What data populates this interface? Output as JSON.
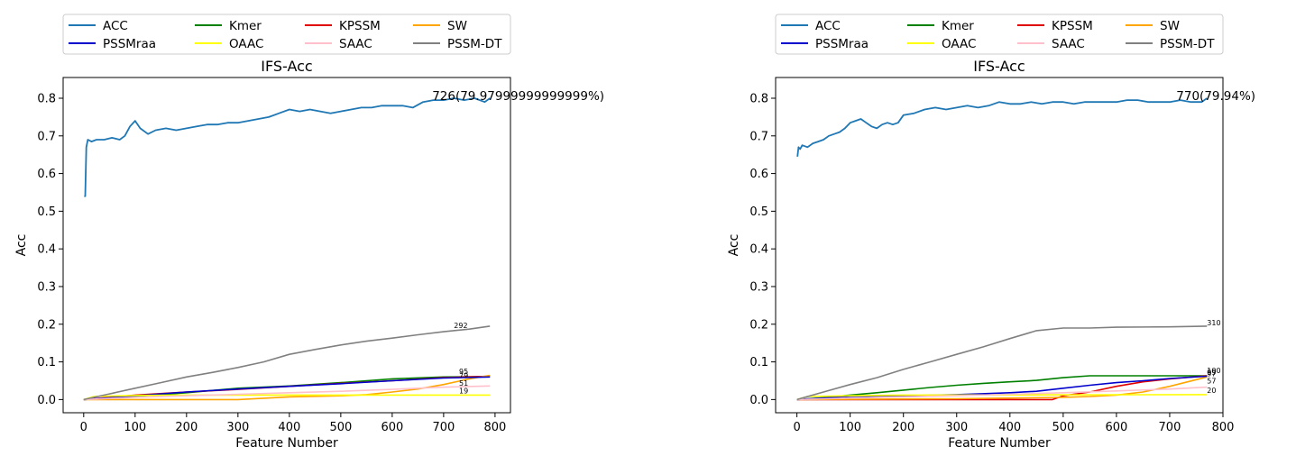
{
  "colors": {
    "ACC": "#1f77b4",
    "PSSMraa": "#0000cd",
    "Kmer": "#008000",
    "OAAC": "#ffff00",
    "KPSSM": "#e00000",
    "SAAC": "#ffc0cb",
    "SW": "#ffa500",
    "PSSM-DT": "#808080"
  },
  "chart_data": [
    {
      "type": "line",
      "title": "IFS-Acc",
      "xlabel": "Feature Number",
      "ylabel": "Acc",
      "xlim": [
        -40,
        830
      ],
      "ylim": [
        -0.035,
        0.855
      ],
      "xticks": [
        "0",
        "100",
        "200",
        "300",
        "400",
        "500",
        "600",
        "700",
        "800"
      ],
      "yticks": [
        "0.0",
        "0.1",
        "0.2",
        "0.3",
        "0.4",
        "0.5",
        "0.6",
        "0.7",
        "0.8"
      ],
      "grid": false,
      "legend_position": "top",
      "legend": [
        "ACC",
        "Kmer",
        "KPSSM",
        "SW",
        "PSSMraa",
        "OAAC",
        "SAAC",
        "PSSM-DT"
      ],
      "best_annotation": "726(79.97999999999999%)",
      "series": [
        {
          "name": "ACC",
          "x": [
            1,
            3,
            5,
            8,
            15,
            25,
            40,
            55,
            70,
            80,
            90,
            100,
            110,
            125,
            140,
            160,
            180,
            200,
            220,
            240,
            260,
            280,
            300,
            320,
            340,
            360,
            380,
            400,
            420,
            440,
            460,
            480,
            500,
            520,
            540,
            560,
            580,
            600,
            620,
            640,
            660,
            680,
            700,
            720,
            740,
            760,
            780,
            790
          ],
          "y": [
            0.54,
            0.54,
            0.67,
            0.69,
            0.685,
            0.69,
            0.69,
            0.695,
            0.69,
            0.7,
            0.725,
            0.74,
            0.72,
            0.705,
            0.715,
            0.72,
            0.715,
            0.72,
            0.725,
            0.73,
            0.73,
            0.735,
            0.735,
            0.74,
            0.745,
            0.75,
            0.76,
            0.77,
            0.765,
            0.77,
            0.765,
            0.76,
            0.765,
            0.77,
            0.775,
            0.775,
            0.78,
            0.78,
            0.78,
            0.775,
            0.79,
            0.795,
            0.795,
            0.8,
            0.795,
            0.8,
            0.79,
            0.8
          ]
        },
        {
          "name": "Kmer",
          "x": [
            0,
            100,
            200,
            300,
            400,
            500,
            600,
            700,
            790
          ],
          "y": [
            0,
            0.008,
            0.018,
            0.03,
            0.036,
            0.045,
            0.055,
            0.06,
            0.061
          ]
        },
        {
          "name": "KPSSM",
          "x": [
            0,
            100,
            200,
            300,
            400,
            500,
            600,
            700,
            790
          ],
          "y": [
            0,
            0.012,
            0.02,
            0.027,
            0.035,
            0.043,
            0.05,
            0.058,
            0.062
          ]
        },
        {
          "name": "SW",
          "x": [
            0,
            300,
            400,
            500,
            550,
            600,
            650,
            700,
            750,
            790
          ],
          "y": [
            0,
            0.0,
            0.007,
            0.01,
            0.013,
            0.02,
            0.028,
            0.04,
            0.055,
            0.064
          ]
        },
        {
          "name": "PSSMraa",
          "x": [
            0,
            100,
            200,
            300,
            400,
            500,
            600,
            700,
            790
          ],
          "y": [
            0,
            0.01,
            0.02,
            0.028,
            0.035,
            0.042,
            0.05,
            0.057,
            0.06
          ]
        },
        {
          "name": "OAAC",
          "x": [
            0,
            20,
            100,
            200,
            790
          ],
          "y": [
            0,
            0.008,
            0.011,
            0.012,
            0.012
          ]
        },
        {
          "name": "SAAC",
          "x": [
            0,
            100,
            200,
            300,
            400,
            500,
            600,
            700,
            790
          ],
          "y": [
            0,
            0.006,
            0.01,
            0.014,
            0.018,
            0.022,
            0.027,
            0.033,
            0.036
          ]
        },
        {
          "name": "PSSM-DT",
          "x": [
            0,
            50,
            100,
            150,
            200,
            250,
            300,
            350,
            400,
            450,
            500,
            550,
            600,
            650,
            700,
            750,
            790
          ],
          "y": [
            0,
            0.015,
            0.03,
            0.045,
            0.06,
            0.072,
            0.085,
            0.1,
            0.12,
            0.133,
            0.145,
            0.155,
            0.163,
            0.172,
            0.18,
            0.187,
            0.195
          ]
        }
      ],
      "end_labels": [
        {
          "text": "292",
          "x": 720,
          "y": 0.19
        },
        {
          "text": "95",
          "x": 730,
          "y": 0.068
        },
        {
          "text": "79",
          "x": 730,
          "y": 0.057
        },
        {
          "text": "51",
          "x": 730,
          "y": 0.037
        },
        {
          "text": "19",
          "x": 730,
          "y": 0.017
        }
      ]
    },
    {
      "type": "line",
      "title": "IFS-Acc",
      "xlabel": "Feature Number",
      "ylabel": "Acc",
      "xlim": [
        -40,
        800
      ],
      "ylim": [
        -0.035,
        0.855
      ],
      "xticks": [
        "0",
        "100",
        "200",
        "300",
        "400",
        "500",
        "600",
        "700",
        "800"
      ],
      "yticks": [
        "0.0",
        "0.1",
        "0.2",
        "0.3",
        "0.4",
        "0.5",
        "0.6",
        "0.7",
        "0.8"
      ],
      "grid": false,
      "legend_position": "top",
      "legend": [
        "ACC",
        "Kmer",
        "KPSSM",
        "SW",
        "PSSMraa",
        "OAAC",
        "SAAC",
        "PSSM-DT"
      ],
      "best_annotation": "770(79.94%)",
      "series": [
        {
          "name": "ACC",
          "x": [
            1,
            3,
            6,
            10,
            20,
            30,
            40,
            50,
            60,
            70,
            80,
            90,
            100,
            110,
            120,
            130,
            140,
            150,
            160,
            170,
            180,
            190,
            200,
            220,
            240,
            260,
            280,
            300,
            320,
            340,
            360,
            380,
            400,
            420,
            440,
            460,
            480,
            500,
            520,
            540,
            560,
            580,
            600,
            620,
            640,
            660,
            680,
            700,
            720,
            740,
            760,
            770
          ],
          "y": [
            0.645,
            0.67,
            0.665,
            0.675,
            0.67,
            0.68,
            0.685,
            0.69,
            0.7,
            0.705,
            0.71,
            0.72,
            0.735,
            0.74,
            0.745,
            0.735,
            0.725,
            0.72,
            0.73,
            0.735,
            0.73,
            0.735,
            0.755,
            0.76,
            0.77,
            0.775,
            0.77,
            0.775,
            0.78,
            0.775,
            0.78,
            0.79,
            0.785,
            0.785,
            0.79,
            0.785,
            0.79,
            0.79,
            0.785,
            0.79,
            0.79,
            0.79,
            0.79,
            0.795,
            0.795,
            0.79,
            0.79,
            0.79,
            0.795,
            0.79,
            0.79,
            0.8
          ]
        },
        {
          "name": "Kmer",
          "x": [
            0,
            50,
            100,
            150,
            200,
            250,
            300,
            350,
            400,
            450,
            500,
            550,
            600,
            700,
            770
          ],
          "y": [
            0,
            0.005,
            0.012,
            0.018,
            0.025,
            0.032,
            0.038,
            0.043,
            0.047,
            0.051,
            0.058,
            0.063,
            0.063,
            0.063,
            0.063
          ]
        },
        {
          "name": "KPSSM",
          "x": [
            0,
            100,
            200,
            300,
            400,
            480,
            500,
            550,
            600,
            650,
            700,
            770
          ],
          "y": [
            0,
            0,
            0,
            0,
            0,
            0.0,
            0.01,
            0.02,
            0.035,
            0.047,
            0.055,
            0.063
          ]
        },
        {
          "name": "SW",
          "x": [
            0,
            300,
            400,
            500,
            550,
            600,
            650,
            700,
            770
          ],
          "y": [
            0,
            0.002,
            0.004,
            0.006,
            0.008,
            0.012,
            0.02,
            0.035,
            0.06
          ]
        },
        {
          "name": "PSSMraa",
          "x": [
            0,
            100,
            200,
            300,
            400,
            450,
            500,
            550,
            600,
            650,
            700,
            770
          ],
          "y": [
            0,
            0.008,
            0.01,
            0.013,
            0.018,
            0.022,
            0.03,
            0.038,
            0.045,
            0.05,
            0.056,
            0.062
          ]
        },
        {
          "name": "OAAC",
          "x": [
            0,
            20,
            100,
            200,
            770
          ],
          "y": [
            0,
            0.008,
            0.01,
            0.012,
            0.013
          ]
        },
        {
          "name": "SAAC",
          "x": [
            0,
            100,
            200,
            300,
            400,
            500,
            600,
            700,
            770
          ],
          "y": [
            0,
            0.004,
            0.007,
            0.01,
            0.014,
            0.018,
            0.023,
            0.028,
            0.033
          ]
        },
        {
          "name": "PSSM-DT",
          "x": [
            0,
            50,
            100,
            150,
            200,
            250,
            300,
            350,
            400,
            450,
            500,
            550,
            600,
            700,
            770
          ],
          "y": [
            0,
            0.02,
            0.04,
            0.058,
            0.08,
            0.1,
            0.12,
            0.14,
            0.162,
            0.183,
            0.19,
            0.19,
            0.192,
            0.193,
            0.195
          ]
        }
      ],
      "end_labels": [
        {
          "text": "310",
          "x": 770,
          "y": 0.197
        },
        {
          "text": "100",
          "x": 770,
          "y": 0.07
        },
        {
          "text": "99",
          "x": 770,
          "y": 0.066
        },
        {
          "text": "97",
          "x": 770,
          "y": 0.062
        },
        {
          "text": "57",
          "x": 770,
          "y": 0.043
        },
        {
          "text": "20",
          "x": 770,
          "y": 0.018
        }
      ]
    }
  ]
}
